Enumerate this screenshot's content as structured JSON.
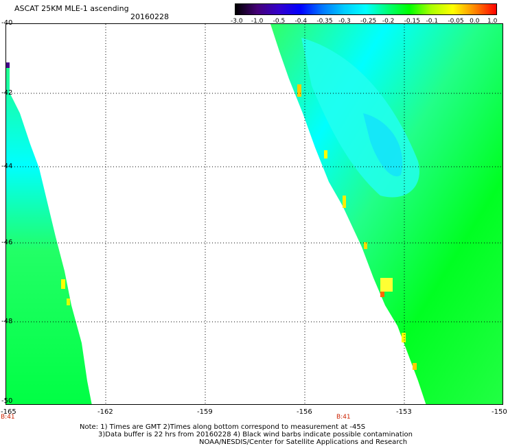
{
  "header": {
    "title": "ASCAT 25KM MLE-1 ascending",
    "date": "20160228"
  },
  "colorbar": {
    "labels": [
      "-3.0",
      "-1.0",
      "-0.5",
      "-0.4",
      "-0.35",
      "-0.3",
      "-0.25",
      "-0.2",
      "-0.15",
      "-0.1",
      "-0.05",
      "0.0",
      "1.0"
    ]
  },
  "map": {
    "lat_labels": [
      "-40",
      "-42",
      "-44",
      "-46",
      "-48",
      "-50"
    ],
    "lon_labels": [
      "-165",
      "-162",
      "-159",
      "-156",
      "-153",
      "-150"
    ],
    "pass_labels": [
      "B:41",
      "B:41"
    ]
  },
  "footer": {
    "line1": "Note: 1) Times are GMT 2)Times along bottom correspond to measurement at -45S",
    "line2": "3)Data buffer is 22 hrs from 20160228 4) Black wind barbs indicate possible contamination",
    "line3": "NOAA/NESDIS/Center for Satellite Applications and Research"
  },
  "colors": {
    "background": "#ffffff",
    "grid": "#000000",
    "pass_label": "#cc2200",
    "colorbar_stops": [
      "#000000",
      "#440077",
      "#3300cc",
      "#0000ff",
      "#0077ff",
      "#00ccff",
      "#00ffff",
      "#00ff77",
      "#00ff00",
      "#aaff00",
      "#ffff00",
      "#ff8800",
      "#ff0000"
    ]
  }
}
